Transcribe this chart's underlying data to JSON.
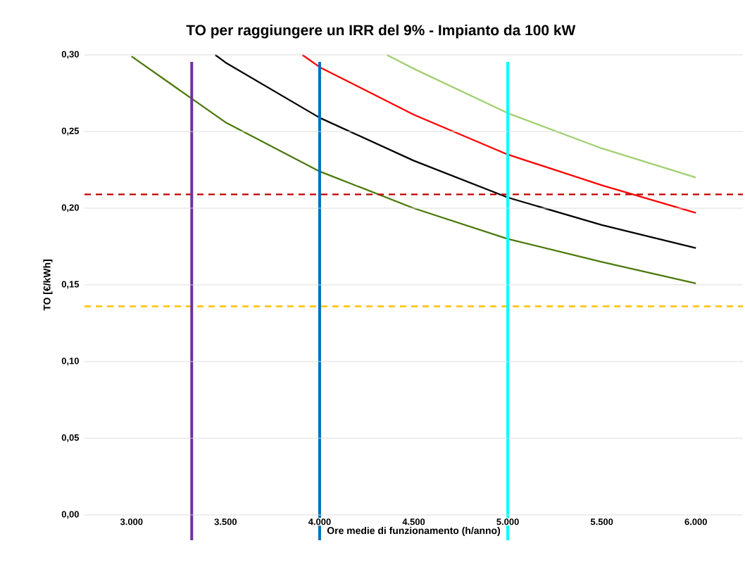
{
  "chart_data": {
    "type": "line",
    "title": "TO per raggiungere un IRR del 9% - Impianto da 100 kW",
    "xlabel": "Ore medie di funzionamento (h/anno)",
    "ylabel": "TO [€/kWh]",
    "xlim": [
      2750,
      6250
    ],
    "ylim": [
      0,
      0.3
    ],
    "xticks": [
      {
        "value": 3000,
        "label": "3.000"
      },
      {
        "value": 3500,
        "label": "3.500"
      },
      {
        "value": 4000,
        "label": "4.000"
      },
      {
        "value": 4500,
        "label": "4.500"
      },
      {
        "value": 5000,
        "label": "5.000"
      },
      {
        "value": 5500,
        "label": "5.500"
      },
      {
        "value": 6000,
        "label": "6.000"
      }
    ],
    "yticks": [
      {
        "value": 0,
        "label": "0,00"
      },
      {
        "value": 0.05,
        "label": "0,05"
      },
      {
        "value": 0.1,
        "label": "0,10"
      },
      {
        "value": 0.15,
        "label": "0,15"
      },
      {
        "value": 0.2,
        "label": "0,20"
      },
      {
        "value": 0.25,
        "label": "0,25"
      },
      {
        "value": 0.3,
        "label": "0,30"
      }
    ],
    "grid": "y",
    "marker": "none",
    "line_style": "solid",
    "series": [
      {
        "color": "#4a7a0c",
        "x": [
          3000,
          3500,
          4000,
          4500,
          5000,
          5500,
          6000
        ],
        "values": [
          0.299,
          0.256,
          0.224,
          0.2,
          0.18,
          0.165,
          0.151
        ]
      },
      {
        "color": "#000000",
        "x": [
          3445,
          3500,
          4000,
          4500,
          5000,
          5500,
          6000
        ],
        "values": [
          0.3,
          0.295,
          0.259,
          0.231,
          0.207,
          0.189,
          0.174
        ]
      },
      {
        "color": "#ff0000",
        "x": [
          3908,
          4000,
          4500,
          5000,
          5500,
          6000
        ],
        "values": [
          0.3,
          0.292,
          0.261,
          0.235,
          0.215,
          0.197
        ]
      },
      {
        "color": "#a0d070",
        "x": [
          4357,
          4500,
          5000,
          5500,
          6000
        ],
        "values": [
          0.3,
          0.291,
          0.262,
          0.239,
          0.22
        ]
      }
    ],
    "ref_lines": [
      {
        "axis": "y",
        "value": 0.209,
        "color": "#c00000",
        "line_style": "dashed"
      },
      {
        "axis": "y",
        "value": 0.136,
        "color": "#ffc000",
        "line_style": "dashed"
      },
      {
        "axis": "x",
        "value": 3320,
        "color": "#7030a0",
        "line_style": "solid"
      },
      {
        "axis": "x",
        "value": 4000,
        "color": "#0070c0",
        "line_style": "solid"
      },
      {
        "axis": "x",
        "value": 5000,
        "color": "#00ffff",
        "line_style": "solid"
      }
    ]
  }
}
